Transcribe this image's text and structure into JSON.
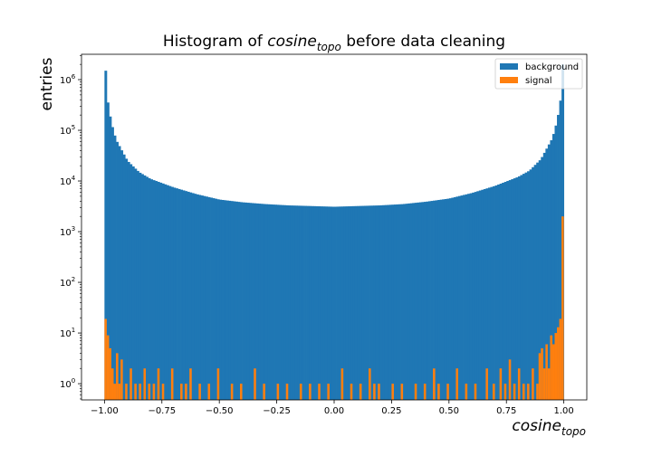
{
  "chart_data": {
    "type": "bar",
    "title": {
      "prefix": "Histogram of ",
      "var": "cosine",
      "sub": "topo",
      "suffix": " before data cleaning"
    },
    "xlabel": {
      "var": "cosine",
      "sub": "topo"
    },
    "ylabel": "entries",
    "xlim": [
      -1.1,
      1.1
    ],
    "ylim_log10": [
      -0.32,
      6.5
    ],
    "yscale": "log",
    "x_ticks": [
      -1.0,
      -0.75,
      -0.5,
      -0.25,
      0.0,
      0.25,
      0.5,
      0.75,
      1.0
    ],
    "x_tick_labels": [
      "−1.00",
      "−0.75",
      "−0.50",
      "−0.25",
      "0.00",
      "0.25",
      "0.50",
      "0.75",
      "1.00"
    ],
    "y_tick_exponents": [
      0,
      1,
      2,
      3,
      4,
      5,
      6
    ],
    "bin_edges_range": [
      -1.0,
      1.0
    ],
    "bins": 200,
    "legend_position": "top-right",
    "series": [
      {
        "name": "background",
        "color": "#1f77b4",
        "curve": "symmetric U-shape, approx 3000 entries near 0 rising to approx 2e6 at the edges",
        "x": [
          -0.995,
          -0.99,
          -0.98,
          -0.97,
          -0.95,
          -0.9,
          -0.85,
          -0.8,
          -0.7,
          -0.6,
          -0.5,
          -0.4,
          -0.3,
          -0.2,
          -0.1,
          0.0,
          0.1,
          0.2,
          0.3,
          0.4,
          0.5,
          0.6,
          0.7,
          0.8,
          0.85,
          0.9,
          0.95,
          0.97,
          0.98,
          0.99,
          0.995
        ],
        "values": [
          1500000,
          500000,
          250000,
          140000,
          65000,
          25000,
          15000,
          11000,
          7500,
          5500,
          4300,
          3800,
          3500,
          3300,
          3200,
          3100,
          3200,
          3300,
          3500,
          3900,
          4500,
          5800,
          8000,
          12000,
          16000,
          27000,
          70000,
          150000,
          270000,
          550000,
          2000000
        ]
      },
      {
        "name": "signal",
        "color": "#ff7f0e",
        "x": [
          -0.995,
          -0.985,
          -0.975,
          -0.965,
          -0.955,
          -0.945,
          -0.935,
          -0.925,
          -0.905,
          -0.885,
          -0.865,
          -0.845,
          -0.825,
          -0.805,
          -0.785,
          -0.765,
          -0.745,
          -0.705,
          -0.665,
          -0.645,
          -0.625,
          -0.585,
          -0.545,
          -0.505,
          -0.445,
          -0.405,
          -0.345,
          -0.305,
          -0.245,
          -0.205,
          -0.145,
          -0.105,
          -0.065,
          -0.025,
          0.035,
          0.075,
          0.115,
          0.155,
          0.175,
          0.195,
          0.255,
          0.295,
          0.355,
          0.395,
          0.435,
          0.455,
          0.495,
          0.535,
          0.575,
          0.615,
          0.665,
          0.695,
          0.725,
          0.745,
          0.765,
          0.785,
          0.805,
          0.825,
          0.845,
          0.865,
          0.885,
          0.895,
          0.905,
          0.915,
          0.925,
          0.935,
          0.945,
          0.955,
          0.965,
          0.975,
          0.985,
          0.995
        ],
        "values": [
          19,
          9,
          5,
          2,
          1,
          4,
          1,
          3,
          1,
          2,
          1,
          1,
          2,
          1,
          1,
          2,
          1,
          2,
          1,
          1,
          2,
          1,
          1,
          2,
          1,
          1,
          2,
          1,
          1,
          1,
          1,
          1,
          1,
          1,
          2,
          1,
          1,
          2,
          1,
          1,
          1,
          1,
          1,
          1,
          2,
          1,
          1,
          2,
          1,
          1,
          2,
          1,
          2,
          1,
          3,
          1,
          2,
          1,
          1,
          2,
          1,
          4,
          5,
          2,
          6,
          2,
          9,
          6,
          10,
          13,
          19,
          2000
        ]
      }
    ]
  }
}
